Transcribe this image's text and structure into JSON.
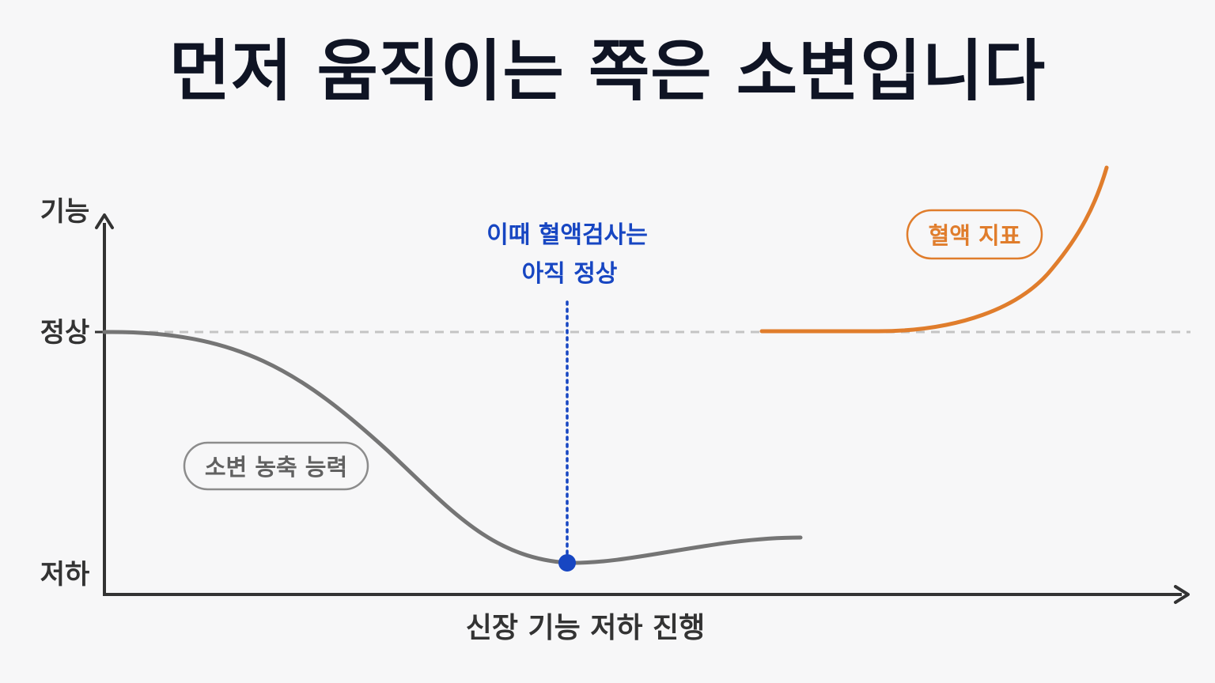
{
  "title": "먼저 움직이는 쪽은 소변입니다",
  "axes": {
    "y_label": "기능",
    "y_tick_normal": "정상",
    "y_tick_low": "저하",
    "x_label": "신장 기능 저하 진행"
  },
  "series": {
    "urine": {
      "label": "소변 농축 능력",
      "color": "#757575"
    },
    "blood": {
      "label": "혈액 지표",
      "color": "#e07d2c"
    }
  },
  "annotation": {
    "line1": "이때 혈액검사는",
    "line2": "아직 정상",
    "color": "#1746c2"
  },
  "colors": {
    "axis": "#333333",
    "normal_line": "#c4c4c4",
    "title": "#0f1424"
  }
}
